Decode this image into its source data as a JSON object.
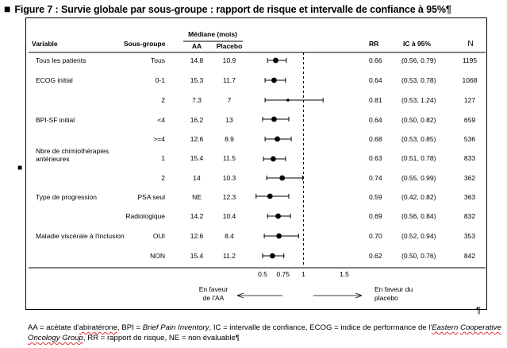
{
  "figure_title": "Figure 7 : Survie globale par sous-groupe : rapport de risque et intervalle de confiance à 95%",
  "title_marks": {
    "bullet": "■",
    "pilcrow": "¶",
    "side_bullet": "■"
  },
  "chart_data": {
    "type": "forest",
    "headers": {
      "variable": "Variable",
      "subgroup": "Sous-groupe",
      "median": "Médiane (mois)",
      "aa": "AA",
      "placebo": "Placebo",
      "rr": "RR",
      "ci": "IC à 95%",
      "n": "N"
    },
    "x_ticks": [
      "0.5",
      "0.75",
      "1",
      "1.5"
    ],
    "x_tick_values": [
      0.5,
      0.75,
      1,
      1.5
    ],
    "xlim": [
      0.4,
      1.6
    ],
    "reference_line": 1,
    "favor_left": [
      "En faveur",
      "de l'AA"
    ],
    "favor_right": [
      "En faveur du",
      "placebo"
    ],
    "rows": [
      {
        "variable": [
          "Tous les patients"
        ],
        "subgroup": "Tous",
        "aa": "14.8",
        "placebo": "10.9",
        "rr": "0.66",
        "ci": "(0.56, 0.79)",
        "n": "1195",
        "hr": 0.66,
        "lo": 0.56,
        "hi": 0.79
      },
      {
        "variable": [
          "ECOG initial"
        ],
        "subgroup": "0-1",
        "aa": "15.3",
        "placebo": "11.7",
        "rr": "0.64",
        "ci": "(0.53, 0.78)",
        "n": "1068",
        "hr": 0.64,
        "lo": 0.53,
        "hi": 0.78
      },
      {
        "variable": [],
        "subgroup": "2",
        "aa": "7.3",
        "placebo": "7",
        "rr": "0.81",
        "ci": "(0.53, 1.24)",
        "n": "127",
        "hr": 0.81,
        "lo": 0.53,
        "hi": 1.24
      },
      {
        "variable": [
          "BPI-SF initial"
        ],
        "subgroup": "<4",
        "aa": "16.2",
        "placebo": "13",
        "rr": "0.64",
        "ci": "(0.50, 0.82)",
        "n": "659",
        "hr": 0.64,
        "lo": 0.5,
        "hi": 0.82
      },
      {
        "variable": [],
        "subgroup": ">=4",
        "aa": "12.6",
        "placebo": "8.9",
        "rr": "0.68",
        "ci": "(0.53, 0.85)",
        "n": "536",
        "hr": 0.68,
        "lo": 0.53,
        "hi": 0.85
      },
      {
        "variable": [
          "Nbre de chimiothérapies",
          "antérieures"
        ],
        "subgroup": "1",
        "aa": "15.4",
        "placebo": "11.5",
        "rr": "0.63",
        "ci": "(0.51, 0.78)",
        "n": "833",
        "hr": 0.63,
        "lo": 0.51,
        "hi": 0.78
      },
      {
        "variable": [],
        "subgroup": "2",
        "aa": "14",
        "placebo": "10.3",
        "rr": "0.74",
        "ci": "(0.55, 0.99)",
        "n": "362",
        "hr": 0.74,
        "lo": 0.55,
        "hi": 0.99
      },
      {
        "variable": [
          "Type de progression"
        ],
        "subgroup": "PSA seul",
        "aa": "NE",
        "placebo": "12.3",
        "rr": "0.59",
        "ci": "(0.42, 0.82)",
        "n": "363",
        "hr": 0.59,
        "lo": 0.42,
        "hi": 0.82
      },
      {
        "variable": [],
        "subgroup": "Radiologique",
        "aa": "14.2",
        "placebo": "10.4",
        "rr": "0.69",
        "ci": "(0.56, 0.84)",
        "n": "832",
        "hr": 0.69,
        "lo": 0.56,
        "hi": 0.84
      },
      {
        "variable": [
          "Maladie viscérale à l'inclusion"
        ],
        "subgroup": "OUI",
        "aa": "12.6",
        "placebo": "8.4",
        "rr": "0.70",
        "ci": "(0.52, 0.94)",
        "n": "353",
        "hr": 0.7,
        "lo": 0.52,
        "hi": 0.94
      },
      {
        "variable": [],
        "subgroup": "NON",
        "aa": "15.4",
        "placebo": "11.2",
        "rr": "0.62",
        "ci": "(0.50, 0.76)",
        "n": "842",
        "hr": 0.62,
        "lo": 0.5,
        "hi": 0.76
      }
    ]
  },
  "footnote": {
    "p1": "AA = acétate d'",
    "p2": "abiratérone",
    "p3": ", BPI = ",
    "p4": "Brief Pain Inventory",
    "p5": ", IC = intervalle de confiance, ECOG = indice de performance de l'",
    "p6": "Eastern",
    "p7": "Cooperative Oncology Group",
    "p8": ", RR = rapport de risque, NE = non évaluable¶"
  }
}
